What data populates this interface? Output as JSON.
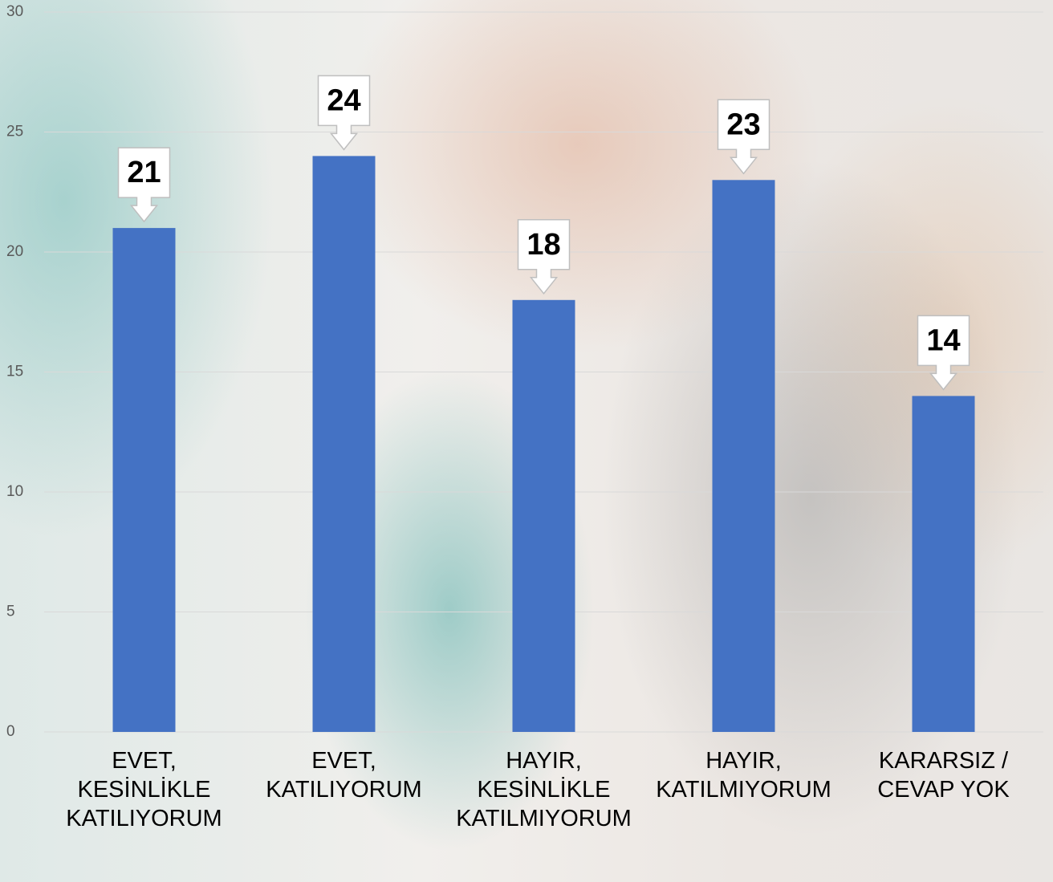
{
  "chart_data": {
    "type": "bar",
    "categories": [
      "EVET,\nKESİNLİKLE\nKATILIYORUM",
      "EVET,\nKATILIYORUM",
      "HAYIR,\nKESİNLİKLE\nKATILMIYORUM",
      "HAYIR,\nKATILMIYORUM",
      "KARARSIZ /\nCEVAP YOK"
    ],
    "values": [
      21,
      24,
      18,
      23,
      14
    ],
    "color": "#4472c4",
    "ylim": [
      0,
      30
    ],
    "yticks": [
      0,
      5,
      10,
      15,
      20,
      25,
      30
    ],
    "grid": true
  }
}
